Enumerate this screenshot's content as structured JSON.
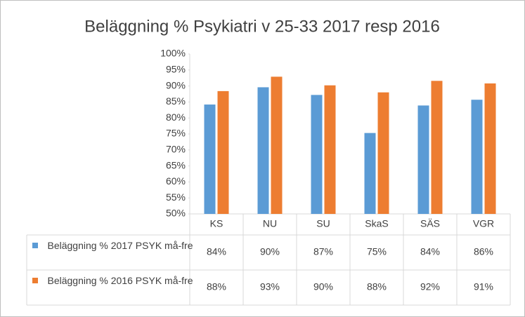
{
  "chart_data": {
    "type": "bar",
    "title": "Beläggning % Psykiatri v 25-33 2017 resp 2016",
    "categories": [
      "KS",
      "NU",
      "SU",
      "SkaS",
      "SÄS",
      "VGR"
    ],
    "series": [
      {
        "name": "Beläggning % 2017 PSYK må-fre",
        "color": "#5b9bd5",
        "values": [
          84.2,
          89.6,
          87.2,
          75.3,
          83.9,
          85.7
        ],
        "value_labels": [
          "84%",
          "90%",
          "87%",
          "75%",
          "84%",
          "86%"
        ]
      },
      {
        "name": "Beläggning % 2016 PSYK må-fre",
        "color": "#ed7d31",
        "values": [
          88.4,
          92.9,
          90.2,
          88.0,
          91.6,
          90.8
        ],
        "value_labels": [
          "88%",
          "93%",
          "90%",
          "88%",
          "92%",
          "91%"
        ]
      }
    ],
    "ylim": [
      50,
      100
    ],
    "yticks": [
      {
        "value": 50,
        "label": "50%"
      },
      {
        "value": 55,
        "label": "55%"
      },
      {
        "value": 60,
        "label": "60%"
      },
      {
        "value": 65,
        "label": "65%"
      },
      {
        "value": 70,
        "label": "70%"
      },
      {
        "value": 75,
        "label": "75%"
      },
      {
        "value": 80,
        "label": "80%"
      },
      {
        "value": 85,
        "label": "85%"
      },
      {
        "value": 90,
        "label": "90%"
      },
      {
        "value": 95,
        "label": "95%"
      },
      {
        "value": 100,
        "label": "100%"
      }
    ],
    "grid": false
  }
}
